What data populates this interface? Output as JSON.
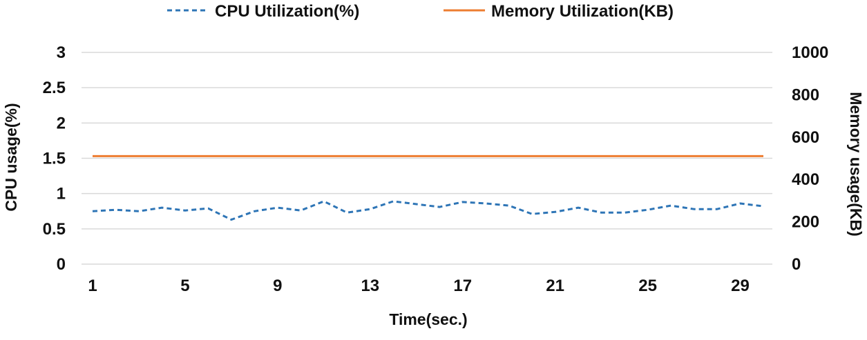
{
  "chart_data": {
    "type": "line",
    "x": [
      1,
      2,
      3,
      4,
      5,
      6,
      7,
      8,
      9,
      10,
      11,
      12,
      13,
      14,
      15,
      16,
      17,
      18,
      19,
      20,
      21,
      22,
      23,
      24,
      25,
      26,
      27,
      28,
      29,
      30
    ],
    "x_tick_labels": [
      "1",
      "5",
      "9",
      "13",
      "17",
      "21",
      "25",
      "29"
    ],
    "xlabel": "Time(sec.)",
    "ylabel": "CPU usage(%)",
    "y2label": "Memory usage(KB)",
    "ylim": [
      0,
      3
    ],
    "y_tick_labels": [
      "0",
      "0.5",
      "1",
      "1.5",
      "2",
      "2.5",
      "3"
    ],
    "y2lim": [
      0,
      1000
    ],
    "y2_tick_labels": [
      "0",
      "200",
      "400",
      "600",
      "800",
      "1000"
    ],
    "grid": true,
    "legend_position": "top",
    "series": [
      {
        "name": "CPU Utilization(%)",
        "axis": "left",
        "style": "dashed",
        "color": "#2e75b6",
        "values": [
          0.75,
          0.77,
          0.75,
          0.8,
          0.76,
          0.79,
          0.63,
          0.75,
          0.8,
          0.76,
          0.89,
          0.73,
          0.78,
          0.89,
          0.85,
          0.81,
          0.88,
          0.86,
          0.83,
          0.71,
          0.74,
          0.8,
          0.73,
          0.73,
          0.77,
          0.83,
          0.78,
          0.78,
          0.86,
          0.82
        ]
      },
      {
        "name": "Memory Utilization(KB)",
        "axis": "right",
        "style": "solid",
        "color": "#ed7d31",
        "values": [
          510,
          510,
          510,
          510,
          510,
          510,
          510,
          510,
          510,
          510,
          510,
          510,
          510,
          510,
          510,
          510,
          510,
          510,
          510,
          510,
          510,
          510,
          510,
          510,
          510,
          510,
          510,
          510,
          510,
          510
        ]
      }
    ]
  }
}
